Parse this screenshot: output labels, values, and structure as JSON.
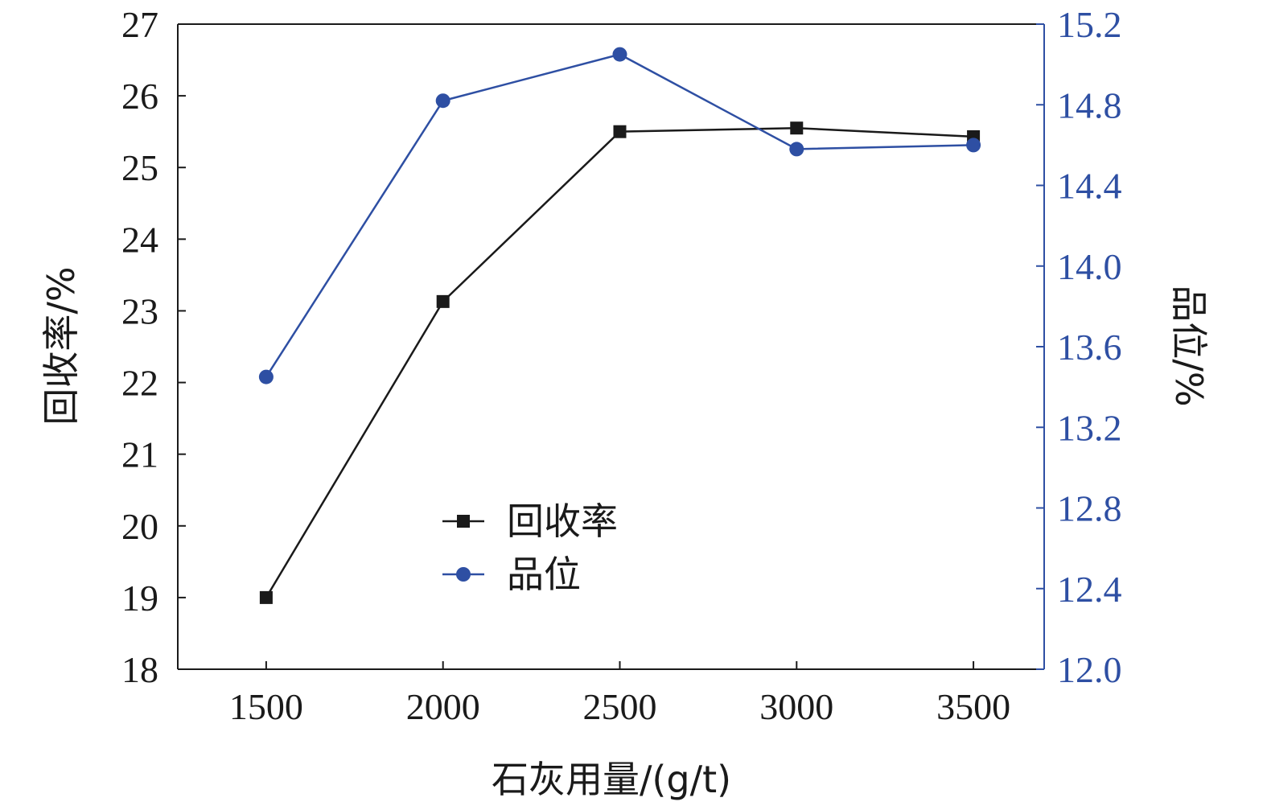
{
  "chart_data": {
    "type": "line",
    "x": [
      1500,
      2000,
      2500,
      3000,
      3500
    ],
    "x_ticks": [
      "1500",
      "2000",
      "2500",
      "3000",
      "3500"
    ],
    "xlim": [
      1250,
      3700
    ],
    "xlabel": "石灰用量/(g/t)",
    "ylabel_left": "回收率/%",
    "ylabel_right": "品位/%",
    "ylim_left": [
      18,
      27
    ],
    "ylim_right": [
      12.0,
      15.2
    ],
    "y_ticks_left": [
      "18",
      "19",
      "20",
      "21",
      "22",
      "23",
      "24",
      "25",
      "26",
      "27"
    ],
    "y_ticks_right": [
      "12.0",
      "12.4",
      "12.8",
      "13.2",
      "13.6",
      "14.0",
      "14.4",
      "14.8",
      "15.2"
    ],
    "series": [
      {
        "name": "回收率",
        "axis": "left",
        "values": [
          19.0,
          23.13,
          25.5,
          25.55,
          25.43
        ],
        "color": "#1a1a1a",
        "marker": "square"
      },
      {
        "name": "品位",
        "axis": "right",
        "values": [
          13.45,
          14.82,
          15.05,
          14.58,
          14.6
        ],
        "color": "#2e4fa3",
        "marker": "circle"
      }
    ],
    "legend_position": "center",
    "grid": false,
    "right_axis_color": "#2e4fa3"
  }
}
